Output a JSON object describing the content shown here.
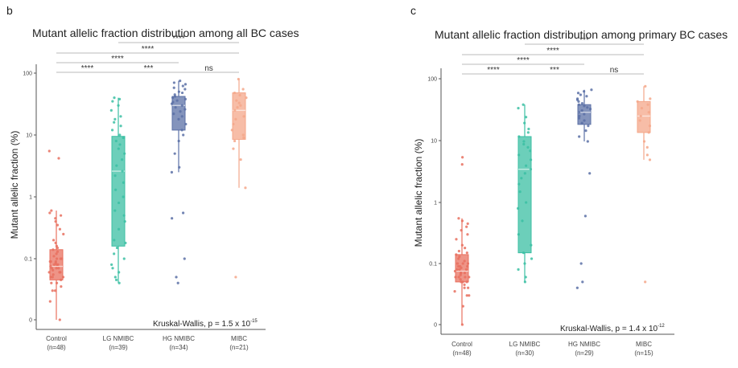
{
  "chart_data": [
    {
      "panel": "b",
      "type": "box",
      "title": "Mutant allelic fraction distribution among all BC cases",
      "ylabel": "Mutant allelic fraction (%)",
      "yscale": "log",
      "yticks": [
        "0",
        "0.1",
        "1",
        "10",
        "100"
      ],
      "categories": [
        "Control",
        "LG NMIBC",
        "HG NMIBC",
        "MIBC"
      ],
      "category_n": [
        "(n=48)",
        "(n=39)",
        "(n=34)",
        "(n=21)"
      ],
      "colors": [
        "#e8705f",
        "#3bbfa3",
        "#5b70a6",
        "#f4a78a"
      ],
      "boxes": [
        {
          "q1": 0.045,
          "median": 0.075,
          "q3": 0.14,
          "min": 0.01,
          "max": 0.6
        },
        {
          "q1": 0.16,
          "median": 2.6,
          "q3": 9.5,
          "min": 0.04,
          "max": 40
        },
        {
          "q1": 12,
          "median": 30,
          "q3": 42,
          "min": 2.5,
          "max": 75
        },
        {
          "q1": 8.5,
          "median": 25,
          "q3": 48,
          "min": 1.4,
          "max": 80
        }
      ],
      "points": [
        [
          0.01,
          0.02,
          0.03,
          0.035,
          0.04,
          0.045,
          0.05,
          0.05,
          0.055,
          0.06,
          0.06,
          0.065,
          0.07,
          0.07,
          0.075,
          0.08,
          0.08,
          0.085,
          0.09,
          0.09,
          0.1,
          0.1,
          0.11,
          0.12,
          0.13,
          0.14,
          0.15,
          0.16,
          0.18,
          0.2,
          0.25,
          0.3,
          0.35,
          0.4,
          0.45,
          0.5,
          0.55,
          0.6,
          0.04,
          0.06,
          0.07,
          0.08,
          0.09,
          0.1,
          0.05,
          4.2,
          5.5,
          0.03
        ],
        [
          0.04,
          0.045,
          0.05,
          0.06,
          0.07,
          0.08,
          0.1,
          0.12,
          0.15,
          0.18,
          0.2,
          0.3,
          0.4,
          0.5,
          0.6,
          0.8,
          1,
          1.3,
          1.7,
          2.2,
          2.6,
          3.2,
          4,
          5,
          6,
          7,
          8,
          9,
          10,
          12,
          14,
          16,
          18,
          20,
          25,
          30,
          35,
          38,
          40
        ],
        [
          0.04,
          0.05,
          0.1,
          0.45,
          0.55,
          2.5,
          3,
          5,
          8,
          10,
          12,
          15,
          18,
          20,
          22,
          24,
          26,
          28,
          30,
          32,
          34,
          36,
          38,
          40,
          42,
          45,
          48,
          50,
          55,
          58,
          62,
          66,
          70,
          75
        ],
        [
          0.05,
          1.4,
          4,
          6,
          8,
          9,
          10,
          12,
          15,
          18,
          20,
          25,
          28,
          30,
          33,
          36,
          40,
          44,
          48,
          55,
          80
        ]
      ],
      "significance": [
        {
          "from": 0,
          "to": 1,
          "label": "****"
        },
        {
          "from": 1,
          "to": 2,
          "label": "***"
        },
        {
          "from": 2,
          "to": 3,
          "label": "ns"
        },
        {
          "from": 0,
          "to": 2,
          "label": "****"
        },
        {
          "from": 0,
          "to": 3,
          "label": "****"
        },
        {
          "from": 1,
          "to": 3,
          "label": "****"
        }
      ],
      "stat_main": "Kruskal-Wallis, p = 1.5 x 10",
      "stat_exp": "-15"
    },
    {
      "panel": "c",
      "type": "box",
      "title": "Mutant allelic fraction distribution among primary BC cases",
      "ylabel": "Mutant allelic fraction (%)",
      "yscale": "log",
      "yticks": [
        "0",
        "0.1",
        "1",
        "10",
        "100"
      ],
      "categories": [
        "Control",
        "LG NMIBC",
        "HG NMIBC",
        "MIBC"
      ],
      "category_n": [
        "(n=48)",
        "(n=30)",
        "(n=29)",
        "(n=15)"
      ],
      "colors": [
        "#e8705f",
        "#3bbfa3",
        "#5b70a6",
        "#f4a78a"
      ],
      "boxes": [
        {
          "q1": 0.05,
          "median": 0.075,
          "q3": 0.14,
          "min": 0.01,
          "max": 0.55
        },
        {
          "q1": 0.15,
          "median": 3.5,
          "q3": 12,
          "min": 0.05,
          "max": 40
        },
        {
          "q1": 19,
          "median": 30,
          "q3": 40,
          "min": 10,
          "max": 70
        },
        {
          "q1": 14,
          "median": 26,
          "q3": 45,
          "min": 5,
          "max": 80
        }
      ],
      "points": [
        [
          0.01,
          0.02,
          0.03,
          0.035,
          0.04,
          0.045,
          0.05,
          0.05,
          0.055,
          0.06,
          0.06,
          0.065,
          0.07,
          0.07,
          0.075,
          0.08,
          0.08,
          0.085,
          0.09,
          0.09,
          0.1,
          0.1,
          0.11,
          0.12,
          0.13,
          0.14,
          0.15,
          0.16,
          0.18,
          0.2,
          0.25,
          0.3,
          0.35,
          0.4,
          0.45,
          0.5,
          0.55,
          0.04,
          0.06,
          0.07,
          0.08,
          0.09,
          0.1,
          0.05,
          4.2,
          5.5,
          0.03,
          0.06
        ],
        [
          0.05,
          0.06,
          0.08,
          0.1,
          0.12,
          0.15,
          0.2,
          0.3,
          0.5,
          0.8,
          1,
          1.5,
          2,
          2.5,
          3,
          3.5,
          4,
          5,
          6,
          7,
          8,
          9,
          10,
          12,
          14,
          16,
          20,
          25,
          35,
          40
        ],
        [
          0.04,
          0.05,
          0.1,
          0.6,
          3,
          10,
          12,
          15,
          18,
          20,
          22,
          24,
          26,
          28,
          30,
          32,
          34,
          36,
          38,
          40,
          42,
          45,
          48,
          50,
          55,
          58,
          62,
          66,
          70
        ],
        [
          0.05,
          5,
          6,
          8,
          10,
          14,
          18,
          22,
          26,
          30,
          35,
          40,
          45,
          50,
          80
        ]
      ],
      "significance": [
        {
          "from": 0,
          "to": 1,
          "label": "****"
        },
        {
          "from": 1,
          "to": 2,
          "label": "***"
        },
        {
          "from": 2,
          "to": 3,
          "label": "ns"
        },
        {
          "from": 0,
          "to": 2,
          "label": "****"
        },
        {
          "from": 0,
          "to": 3,
          "label": "****"
        },
        {
          "from": 1,
          "to": 3,
          "label": "***"
        }
      ],
      "stat_main": "Kruskal-Wallis, p = 1.4 x 10",
      "stat_exp": "-12"
    }
  ]
}
